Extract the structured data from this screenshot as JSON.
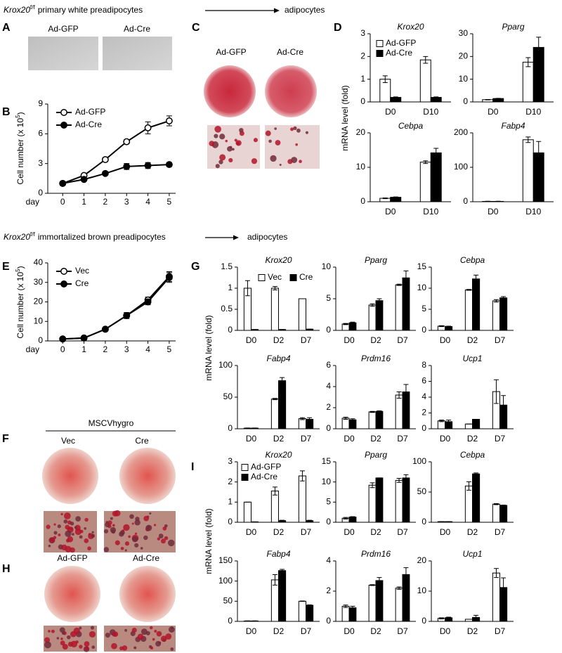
{
  "headers": [
    {
      "gene": "Krox20",
      "superscript": "f/f",
      "text": "primary white preadipocytes",
      "target": "adipocytes"
    },
    {
      "gene": "Krox20",
      "superscript": "f/f",
      "text": "immortalized brown preadipocytes",
      "target": "adipocytes"
    }
  ],
  "panel_labels": [
    "A",
    "B",
    "C",
    "D",
    "E",
    "F",
    "G",
    "H",
    "I"
  ],
  "image_panels": {
    "A": {
      "labels": [
        "Ad-GFP",
        "Ad-Cre"
      ]
    },
    "C": {
      "labels": [
        "Ad-GFP",
        "Ad-Cre"
      ]
    },
    "F": {
      "title": "MSCVhygro",
      "labels": [
        "Vec",
        "Cre"
      ]
    },
    "H": {
      "labels": [
        "Ad-GFP",
        "Ad-Cre"
      ]
    }
  },
  "chart_data": [
    {
      "type": "line",
      "ylabel": "Cell number (x 10",
      "ylabel_sup": "5",
      "ylabel_end": ")",
      "xlabel": "day",
      "x": [
        0,
        1,
        2,
        3,
        4,
        5
      ],
      "xlim": [
        -0.7,
        5.3
      ],
      "xticks": [
        0,
        1,
        2,
        3,
        4,
        5
      ],
      "ylim": [
        0,
        9
      ],
      "yticks": [
        0,
        3,
        6,
        9
      ],
      "legend": "upper left",
      "series": [
        {
          "name": "Ad-GFP",
          "color": "#000000",
          "marker_fill": "#ffffff",
          "values": [
            1,
            1.8,
            3.4,
            5.2,
            6.6,
            7.3
          ],
          "errors": [
            0.05,
            0.1,
            0.2,
            0.2,
            0.6,
            0.5
          ]
        },
        {
          "name": "Ad-Cre",
          "color": "#000000",
          "marker_fill": "#000000",
          "values": [
            1,
            1.4,
            2.0,
            2.7,
            2.8,
            2.9
          ],
          "errors": [
            0.05,
            0.1,
            0.1,
            0.3,
            0.3,
            0.2
          ]
        }
      ]
    },
    {
      "type": "bar",
      "title": "Krox20",
      "categories": [
        "D0",
        "D10"
      ],
      "ylim": [
        0,
        3
      ],
      "yticks": [
        0,
        1,
        2,
        3
      ],
      "legend": "upper left",
      "series": [
        {
          "name": "Ad-GFP",
          "color": "#ffffff",
          "values": [
            1,
            1.85
          ],
          "errors": [
            0.15,
            0.15
          ]
        },
        {
          "name": "Ad-Cre",
          "color": "#000000",
          "values": [
            0.2,
            0.2
          ],
          "errors": [
            0.02,
            0.02
          ]
        }
      ]
    },
    {
      "type": "bar",
      "title": "Pparg",
      "categories": [
        "D0",
        "D10"
      ],
      "ylim": [
        0,
        30
      ],
      "yticks": [
        0,
        10,
        20,
        30
      ],
      "series": [
        {
          "color": "#ffffff",
          "values": [
            1,
            17.5
          ],
          "errors": [
            0.1,
            2
          ]
        },
        {
          "color": "#000000",
          "values": [
            1.5,
            24
          ],
          "errors": [
            0.1,
            4.5
          ]
        }
      ]
    },
    {
      "type": "bar",
      "title": "Cebpa",
      "ylabel": "mRNA level (fold)",
      "categories": [
        "D0",
        "D10"
      ],
      "ylim": [
        0,
        20
      ],
      "yticks": [
        0,
        10,
        20
      ],
      "series": [
        {
          "color": "#ffffff",
          "values": [
            1,
            11.5
          ],
          "errors": [
            0.1,
            0.4
          ]
        },
        {
          "color": "#000000",
          "values": [
            1.3,
            14.2
          ],
          "errors": [
            0.1,
            1.3
          ]
        }
      ]
    },
    {
      "type": "bar",
      "title": "Fabp4",
      "categories": [
        "D0",
        "D10"
      ],
      "ylim": [
        0,
        200
      ],
      "yticks": [
        0,
        100,
        200
      ],
      "series": [
        {
          "color": "#ffffff",
          "values": [
            1,
            180
          ],
          "errors": [
            0.5,
            8
          ]
        },
        {
          "color": "#000000",
          "values": [
            1,
            142
          ],
          "errors": [
            0.5,
            33
          ]
        }
      ]
    },
    {
      "type": "line",
      "ylabel": "Cell number (x 10",
      "ylabel_sup": "5",
      "ylabel_end": ")",
      "xlabel": "day",
      "x": [
        0,
        1,
        2,
        3,
        4,
        5
      ],
      "xlim": [
        -0.7,
        5.3
      ],
      "xticks": [
        0,
        1,
        2,
        3,
        4,
        5
      ],
      "ylim": [
        0,
        40
      ],
      "yticks": [
        0,
        10,
        20,
        30,
        40
      ],
      "legend": "upper left",
      "series": [
        {
          "name": "Vec",
          "color": "#000000",
          "marker_fill": "#ffffff",
          "values": [
            1,
            1.5,
            6,
            13,
            21,
            33
          ],
          "errors": [
            0.2,
            0.3,
            0.5,
            1.5,
            1.5,
            2.5
          ]
        },
        {
          "name": "Cre",
          "color": "#000000",
          "marker_fill": "#000000",
          "values": [
            1,
            1.5,
            6,
            13,
            20,
            32.5
          ],
          "errors": [
            0.2,
            0.3,
            0.5,
            1.5,
            1.5,
            2.5
          ]
        }
      ]
    },
    {
      "type": "bar",
      "title": "Krox20",
      "categories": [
        "D0",
        "D2",
        "D7"
      ],
      "ylim": [
        0,
        1.5
      ],
      "yticks": [
        0,
        0.5,
        1,
        1.5
      ],
      "legend": "top",
      "series": [
        {
          "name": "Vec",
          "color": "#ffffff",
          "values": [
            1,
            1,
            0.75
          ],
          "errors": [
            0.18,
            0.04,
            0
          ]
        },
        {
          "name": "Cre",
          "color": "#000000",
          "values": [
            0.02,
            0.02,
            0.03
          ],
          "errors": [
            0,
            0,
            0
          ]
        }
      ]
    },
    {
      "type": "bar",
      "title": "Pparg",
      "categories": [
        "D0",
        "D2",
        "D7"
      ],
      "ylim": [
        0,
        10
      ],
      "yticks": [
        0,
        5,
        10
      ],
      "series": [
        {
          "color": "#ffffff",
          "values": [
            1,
            4,
            7.2
          ],
          "errors": [
            0.1,
            0.2,
            0.1
          ]
        },
        {
          "color": "#000000",
          "values": [
            1.2,
            4.7,
            8.3
          ],
          "errors": [
            0.1,
            0.3,
            1.1
          ]
        }
      ]
    },
    {
      "type": "bar",
      "title": "Cebpa",
      "categories": [
        "D0",
        "D2",
        "D7"
      ],
      "ylim": [
        0,
        15
      ],
      "yticks": [
        0,
        5,
        10,
        15
      ],
      "series": [
        {
          "color": "#ffffff",
          "values": [
            1,
            9.6,
            7
          ],
          "errors": [
            0.1,
            0.1,
            0.3
          ]
        },
        {
          "color": "#000000",
          "values": [
            0.9,
            12.2,
            7.7
          ],
          "errors": [
            0.1,
            0.9,
            0.3
          ]
        }
      ]
    },
    {
      "type": "bar",
      "title": "Fabp4",
      "ylabel": "mRNA level (fold)",
      "categories": [
        "D0",
        "D2",
        "D7"
      ],
      "ylim": [
        0,
        100
      ],
      "yticks": [
        0,
        50,
        100
      ],
      "series": [
        {
          "color": "#ffffff",
          "values": [
            1,
            47,
            16
          ],
          "errors": [
            0.3,
            1,
            1.5
          ]
        },
        {
          "color": "#000000",
          "values": [
            1,
            76,
            15
          ],
          "errors": [
            0.3,
            5,
            2.5
          ]
        }
      ]
    },
    {
      "type": "bar",
      "title": "Prdm16",
      "categories": [
        "D0",
        "D2",
        "D7"
      ],
      "ylim": [
        0,
        6
      ],
      "yticks": [
        0,
        2,
        4,
        6
      ],
      "series": [
        {
          "color": "#ffffff",
          "values": [
            1,
            1.6,
            3.2
          ],
          "errors": [
            0.1,
            0.05,
            0.3
          ]
        },
        {
          "color": "#000000",
          "values": [
            0.85,
            1.65,
            3.5
          ],
          "errors": [
            0.1,
            0.05,
            0.7
          ]
        }
      ]
    },
    {
      "type": "bar",
      "title": "Ucp1",
      "categories": [
        "D0",
        "D2",
        "D7"
      ],
      "ylim": [
        0,
        8
      ],
      "yticks": [
        0,
        2,
        4,
        6,
        8
      ],
      "series": [
        {
          "color": "#ffffff",
          "values": [
            1,
            0.6,
            4.7
          ],
          "errors": [
            0.1,
            0,
            1.5
          ]
        },
        {
          "color": "#000000",
          "values": [
            0.9,
            1.2,
            3.0
          ],
          "errors": [
            0.2,
            0,
            1.2
          ]
        }
      ]
    },
    {
      "type": "bar",
      "title": "Krox20",
      "categories": [
        "D0",
        "D2",
        "D7"
      ],
      "ylim": [
        0,
        3
      ],
      "yticks": [
        0,
        1,
        2,
        3
      ],
      "legend": "upper left",
      "series": [
        {
          "name": "Ad-GFP",
          "color": "#ffffff",
          "values": [
            1,
            1.55,
            2.3
          ],
          "errors": [
            0,
            0.2,
            0.25
          ]
        },
        {
          "name": "Ad-Cre",
          "color": "#000000",
          "values": [
            0.02,
            0.08,
            0.08
          ],
          "errors": [
            0,
            0.02,
            0.02
          ]
        }
      ]
    },
    {
      "type": "bar",
      "title": "Pparg",
      "categories": [
        "D0",
        "D2",
        "D7"
      ],
      "ylim": [
        0,
        15
      ],
      "yticks": [
        0,
        5,
        10,
        15
      ],
      "series": [
        {
          "color": "#ffffff",
          "values": [
            1,
            9.2,
            10.4
          ],
          "errors": [
            0.2,
            0.6,
            0.5
          ]
        },
        {
          "color": "#000000",
          "values": [
            1.3,
            11,
            11
          ],
          "errors": [
            0.1,
            0,
            0.8
          ]
        }
      ]
    },
    {
      "type": "bar",
      "title": "Cebpa",
      "categories": [
        "D0",
        "D2",
        "D7"
      ],
      "ylim": [
        0,
        100
      ],
      "yticks": [
        0,
        50,
        100
      ],
      "series": [
        {
          "color": "#ffffff",
          "values": [
            1,
            60,
            30
          ],
          "errors": [
            0.2,
            7,
            1
          ]
        },
        {
          "color": "#000000",
          "values": [
            1,
            80,
            28
          ],
          "errors": [
            0.2,
            1.5,
            0.5
          ]
        }
      ]
    },
    {
      "type": "bar",
      "title": "Fabp4",
      "ylabel": "mRNA level (fold)",
      "categories": [
        "D0",
        "D2",
        "D7"
      ],
      "ylim": [
        0,
        150
      ],
      "yticks": [
        0,
        50,
        100,
        150
      ],
      "series": [
        {
          "color": "#ffffff",
          "values": [
            1,
            103,
            50
          ],
          "errors": [
            0.2,
            13,
            0.5
          ]
        },
        {
          "color": "#000000",
          "values": [
            1,
            126,
            40
          ],
          "errors": [
            0.2,
            3,
            1
          ]
        }
      ]
    },
    {
      "type": "bar",
      "title": "Prdm16",
      "categories": [
        "D0",
        "D2",
        "D7"
      ],
      "ylim": [
        0,
        4
      ],
      "yticks": [
        0,
        2,
        4
      ],
      "series": [
        {
          "color": "#ffffff",
          "values": [
            1,
            2.4,
            2.2
          ],
          "errors": [
            0.08,
            0.03,
            0.08
          ]
        },
        {
          "color": "#000000",
          "values": [
            0.9,
            2.7,
            3.1
          ],
          "errors": [
            0.1,
            0.2,
            0.45
          ]
        }
      ]
    },
    {
      "type": "bar",
      "title": "Ucp1",
      "categories": [
        "D0",
        "D2",
        "D7"
      ],
      "ylim": [
        0,
        20
      ],
      "yticks": [
        0,
        10,
        20
      ],
      "series": [
        {
          "color": "#ffffff",
          "values": [
            1,
            0.7,
            16
          ],
          "errors": [
            0.2,
            0,
            1.5
          ]
        },
        {
          "color": "#000000",
          "values": [
            1.2,
            1.3,
            11.2
          ],
          "errors": [
            0.2,
            0.7,
            3.2
          ]
        }
      ]
    }
  ]
}
